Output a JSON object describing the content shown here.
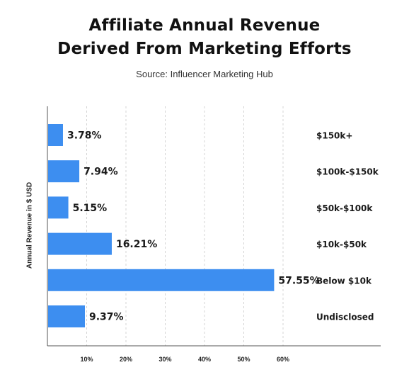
{
  "chart_data": {
    "type": "bar",
    "orientation": "horizontal",
    "title_line1": "Affiliate Annual Revenue",
    "title_line2": "Derived From Marketing Efforts",
    "subtitle": "Source: Influencer Marketing Hub",
    "ylabel": "Annual Revenue in $ USD",
    "xlabel": "",
    "categories": [
      "$150k+",
      "$100k-$150k",
      "$50k-$100k",
      "$10k-$50k",
      "Below $10k",
      "Undisclosed"
    ],
    "values": [
      3.78,
      7.94,
      5.15,
      16.21,
      57.55,
      9.37
    ],
    "value_labels": [
      "3.78%",
      "7.94%",
      "5.15%",
      "16.21%",
      "57.55%",
      "9.37%"
    ],
    "xlim": [
      0,
      60
    ],
    "xticks": [
      10,
      20,
      30,
      40,
      50,
      60
    ],
    "xtick_labels": [
      "10%",
      "20%",
      "30%",
      "40%",
      "50%",
      "60%"
    ],
    "grid": true,
    "bar_color": "#3d8ef0"
  }
}
